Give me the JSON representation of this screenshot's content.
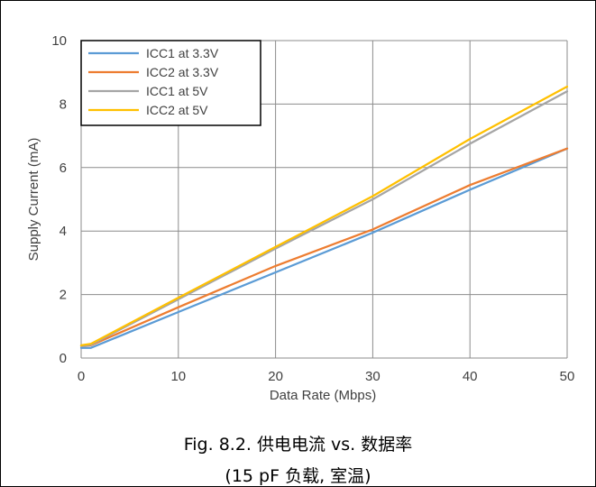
{
  "chart_data": {
    "type": "line",
    "xlabel": "Data Rate (Mbps)",
    "ylabel": "Supply Current (mA)",
    "xlim": [
      0,
      50
    ],
    "ylim": [
      0,
      10
    ],
    "x_ticks": [
      0,
      10,
      20,
      30,
      40,
      50
    ],
    "y_ticks": [
      0,
      2,
      4,
      6,
      8,
      10
    ],
    "grid": true,
    "legend_position": "top-left",
    "series": [
      {
        "name": "ICC1 at 3.3V",
        "color": "#5B9BD5",
        "x": [
          0,
          1,
          10,
          20,
          30,
          40,
          50
        ],
        "y": [
          0.32,
          0.32,
          1.45,
          2.7,
          3.95,
          5.3,
          6.6
        ]
      },
      {
        "name": "ICC2 at 3.3V",
        "color": "#ED7D31",
        "x": [
          0,
          1,
          10,
          20,
          30,
          40,
          50
        ],
        "y": [
          0.38,
          0.4,
          1.6,
          2.9,
          4.05,
          5.45,
          6.6
        ]
      },
      {
        "name": "ICC1 at 5V",
        "color": "#A5A5A5",
        "x": [
          0,
          1,
          10,
          20,
          30,
          40,
          50
        ],
        "y": [
          0.38,
          0.42,
          1.85,
          3.45,
          5.0,
          6.75,
          8.4
        ]
      },
      {
        "name": "ICC2 at 5V",
        "color": "#FFC000",
        "x": [
          0,
          1,
          10,
          20,
          30,
          40,
          50
        ],
        "y": [
          0.4,
          0.45,
          1.9,
          3.5,
          5.1,
          6.9,
          8.55
        ]
      }
    ]
  },
  "caption": {
    "line1": "Fig. 8.2. 供电电流 vs. 数据率",
    "line2": "(15 pF 负载, 室温)"
  }
}
